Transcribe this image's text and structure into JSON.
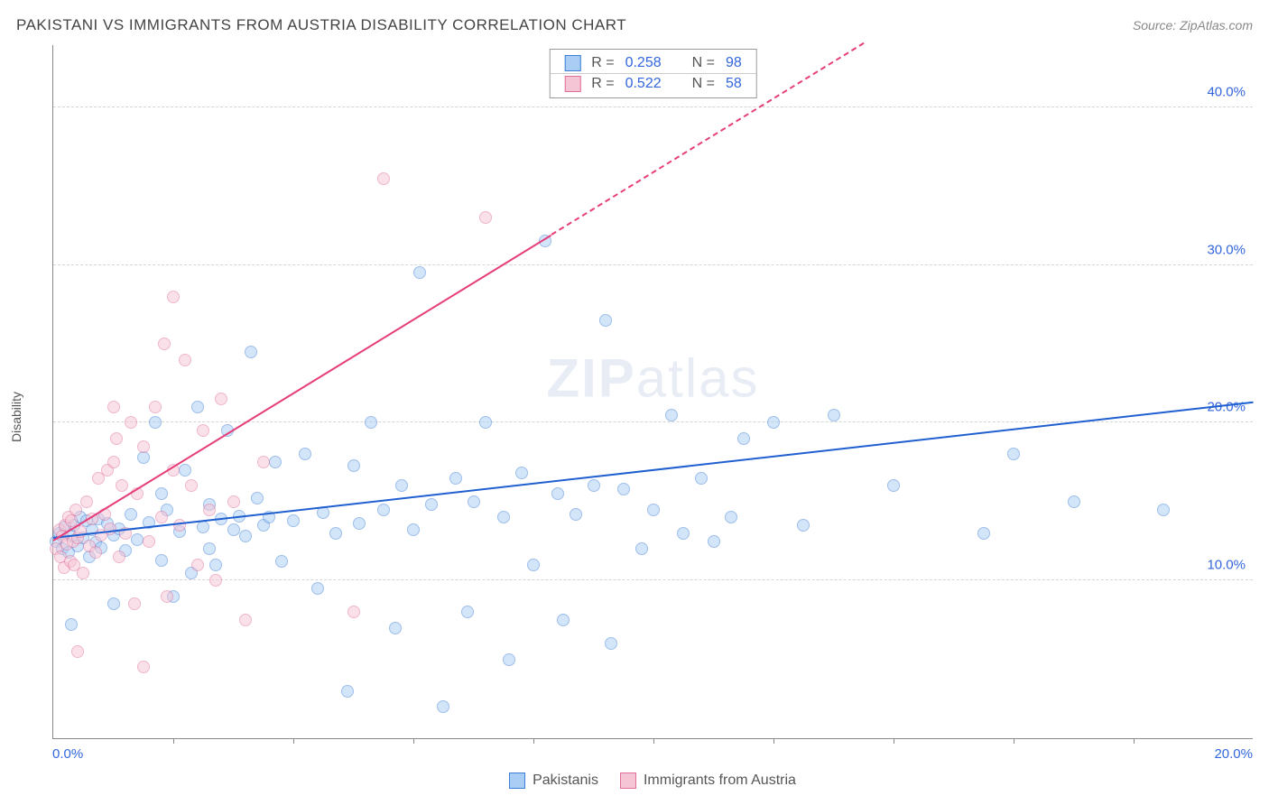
{
  "header": {
    "title": "PAKISTANI VS IMMIGRANTS FROM AUSTRIA DISABILITY CORRELATION CHART",
    "source": "Source: ZipAtlas.com"
  },
  "yaxis": {
    "label": "Disability"
  },
  "watermark": {
    "bold": "ZIP",
    "rest": "atlas"
  },
  "chart": {
    "type": "scatter",
    "xlim": [
      0,
      20
    ],
    "ylim": [
      0,
      44
    ],
    "x_ticks_minor": [
      2,
      4,
      6,
      8,
      10,
      12,
      14,
      16,
      18
    ],
    "x_labels": [
      {
        "pos": "left",
        "text": "0.0%"
      },
      {
        "pos": "right",
        "text": "20.0%"
      }
    ],
    "y_gridlines": [
      {
        "y": 10,
        "label": "10.0%"
      },
      {
        "y": 20,
        "label": "20.0%"
      },
      {
        "y": 30,
        "label": "30.0%"
      },
      {
        "y": 40,
        "label": "40.0%"
      }
    ],
    "background_color": "#ffffff",
    "grid_color": "#d5d5d5",
    "grid_dash": true,
    "axis_color": "#888888",
    "point_radius": 7,
    "point_opacity": 0.5,
    "series": [
      {
        "id": "pakistanis",
        "label": "Pakistanis",
        "fill": "#a9cdf4",
        "stroke": "#3d7fd6",
        "R": "0.258",
        "N": "98",
        "trend": {
          "x1": 0,
          "y1": 12.6,
          "x2": 20,
          "y2": 21.2,
          "color": "#1f5fd0",
          "width": 2.4,
          "dash_after_x": null
        },
        "points": [
          [
            0.05,
            12.5
          ],
          [
            0.1,
            13.0
          ],
          [
            0.15,
            12.0
          ],
          [
            0.2,
            13.4
          ],
          [
            0.25,
            11.8
          ],
          [
            0.3,
            12.8
          ],
          [
            0.35,
            13.5
          ],
          [
            0.4,
            12.2
          ],
          [
            0.45,
            14.0
          ],
          [
            0.5,
            12.7
          ],
          [
            0.55,
            13.8
          ],
          [
            0.6,
            11.5
          ],
          [
            0.65,
            13.2
          ],
          [
            0.7,
            12.4
          ],
          [
            0.75,
            13.9
          ],
          [
            0.8,
            12.1
          ],
          [
            0.9,
            13.6
          ],
          [
            1.0,
            12.9
          ],
          [
            1.1,
            13.3
          ],
          [
            1.2,
            11.9
          ],
          [
            1.3,
            14.2
          ],
          [
            1.4,
            12.6
          ],
          [
            1.5,
            17.8
          ],
          [
            1.6,
            13.7
          ],
          [
            1.7,
            20.0
          ],
          [
            1.8,
            11.3
          ],
          [
            1.9,
            14.5
          ],
          [
            2.0,
            9.0
          ],
          [
            2.1,
            13.1
          ],
          [
            2.2,
            17.0
          ],
          [
            2.3,
            10.5
          ],
          [
            2.4,
            21.0
          ],
          [
            2.5,
            13.4
          ],
          [
            2.6,
            14.8
          ],
          [
            2.7,
            11.0
          ],
          [
            2.8,
            13.9
          ],
          [
            2.9,
            19.5
          ],
          [
            3.0,
            13.2
          ],
          [
            3.1,
            14.1
          ],
          [
            3.2,
            12.8
          ],
          [
            3.3,
            24.5
          ],
          [
            3.4,
            15.2
          ],
          [
            3.5,
            13.5
          ],
          [
            3.6,
            14.0
          ],
          [
            3.7,
            17.5
          ],
          [
            3.8,
            11.2
          ],
          [
            4.0,
            13.8
          ],
          [
            4.2,
            18.0
          ],
          [
            4.4,
            9.5
          ],
          [
            4.5,
            14.3
          ],
          [
            4.7,
            13.0
          ],
          [
            4.9,
            3.0
          ],
          [
            5.0,
            17.3
          ],
          [
            5.1,
            13.6
          ],
          [
            5.3,
            20.0
          ],
          [
            5.5,
            14.5
          ],
          [
            5.7,
            7.0
          ],
          [
            5.8,
            16.0
          ],
          [
            6.0,
            13.2
          ],
          [
            6.1,
            29.5
          ],
          [
            6.3,
            14.8
          ],
          [
            6.5,
            2.0
          ],
          [
            6.7,
            16.5
          ],
          [
            6.9,
            8.0
          ],
          [
            7.0,
            15.0
          ],
          [
            7.2,
            20.0
          ],
          [
            7.5,
            14.0
          ],
          [
            7.6,
            5.0
          ],
          [
            7.8,
            16.8
          ],
          [
            8.0,
            11.0
          ],
          [
            8.2,
            31.5
          ],
          [
            8.4,
            15.5
          ],
          [
            8.5,
            7.5
          ],
          [
            8.7,
            14.2
          ],
          [
            9.0,
            16.0
          ],
          [
            9.2,
            26.5
          ],
          [
            9.3,
            6.0
          ],
          [
            9.5,
            15.8
          ],
          [
            9.8,
            12.0
          ],
          [
            10.0,
            14.5
          ],
          [
            10.3,
            20.5
          ],
          [
            10.5,
            13.0
          ],
          [
            10.8,
            16.5
          ],
          [
            11.0,
            12.5
          ],
          [
            11.3,
            14.0
          ],
          [
            11.5,
            19.0
          ],
          [
            12.0,
            20.0
          ],
          [
            12.5,
            13.5
          ],
          [
            13.0,
            20.5
          ],
          [
            14.0,
            16.0
          ],
          [
            15.5,
            13.0
          ],
          [
            16.0,
            18.0
          ],
          [
            17.0,
            15.0
          ],
          [
            18.5,
            14.5
          ],
          [
            0.3,
            7.2
          ],
          [
            1.0,
            8.5
          ],
          [
            1.8,
            15.5
          ],
          [
            2.6,
            12.0
          ]
        ]
      },
      {
        "id": "austria",
        "label": "Immigrants from Austria",
        "fill": "#f6c5d5",
        "stroke": "#e16d9a",
        "R": "0.522",
        "N": "58",
        "trend": {
          "x1": 0,
          "y1": 12.5,
          "x2": 13.5,
          "y2": 44.0,
          "color": "#e63e7a",
          "width": 2.0,
          "dash_after_x": 8.3
        },
        "points": [
          [
            0.05,
            12.0
          ],
          [
            0.1,
            13.2
          ],
          [
            0.12,
            11.5
          ],
          [
            0.15,
            12.8
          ],
          [
            0.18,
            10.8
          ],
          [
            0.2,
            13.5
          ],
          [
            0.22,
            12.3
          ],
          [
            0.25,
            14.0
          ],
          [
            0.28,
            11.2
          ],
          [
            0.3,
            13.8
          ],
          [
            0.33,
            12.5
          ],
          [
            0.35,
            11.0
          ],
          [
            0.38,
            14.5
          ],
          [
            0.4,
            12.7
          ],
          [
            0.45,
            13.1
          ],
          [
            0.5,
            10.5
          ],
          [
            0.55,
            15.0
          ],
          [
            0.6,
            12.2
          ],
          [
            0.65,
            13.9
          ],
          [
            0.7,
            11.8
          ],
          [
            0.75,
            16.5
          ],
          [
            0.8,
            12.9
          ],
          [
            0.85,
            14.2
          ],
          [
            0.9,
            17.0
          ],
          [
            0.95,
            13.3
          ],
          [
            1.0,
            17.5
          ],
          [
            1.05,
            19.0
          ],
          [
            1.1,
            11.5
          ],
          [
            1.15,
            16.0
          ],
          [
            1.2,
            13.0
          ],
          [
            1.3,
            20.0
          ],
          [
            1.35,
            8.5
          ],
          [
            1.4,
            15.5
          ],
          [
            1.5,
            18.5
          ],
          [
            1.6,
            12.5
          ],
          [
            1.7,
            21.0
          ],
          [
            1.8,
            14.0
          ],
          [
            1.85,
            25.0
          ],
          [
            1.9,
            9.0
          ],
          [
            2.0,
            17.0
          ],
          [
            2.1,
            13.5
          ],
          [
            2.2,
            24.0
          ],
          [
            2.3,
            16.0
          ],
          [
            2.4,
            11.0
          ],
          [
            2.5,
            19.5
          ],
          [
            2.6,
            14.5
          ],
          [
            2.7,
            10.0
          ],
          [
            2.8,
            21.5
          ],
          [
            3.0,
            15.0
          ],
          [
            1.5,
            4.5
          ],
          [
            2.0,
            28.0
          ],
          [
            3.2,
            7.5
          ],
          [
            3.5,
            17.5
          ],
          [
            5.0,
            8.0
          ],
          [
            5.5,
            35.5
          ],
          [
            7.2,
            33.0
          ],
          [
            0.4,
            5.5
          ],
          [
            1.0,
            21.0
          ]
        ]
      }
    ]
  },
  "stats_box": {
    "R_label": "R =",
    "N_label": "N ="
  }
}
